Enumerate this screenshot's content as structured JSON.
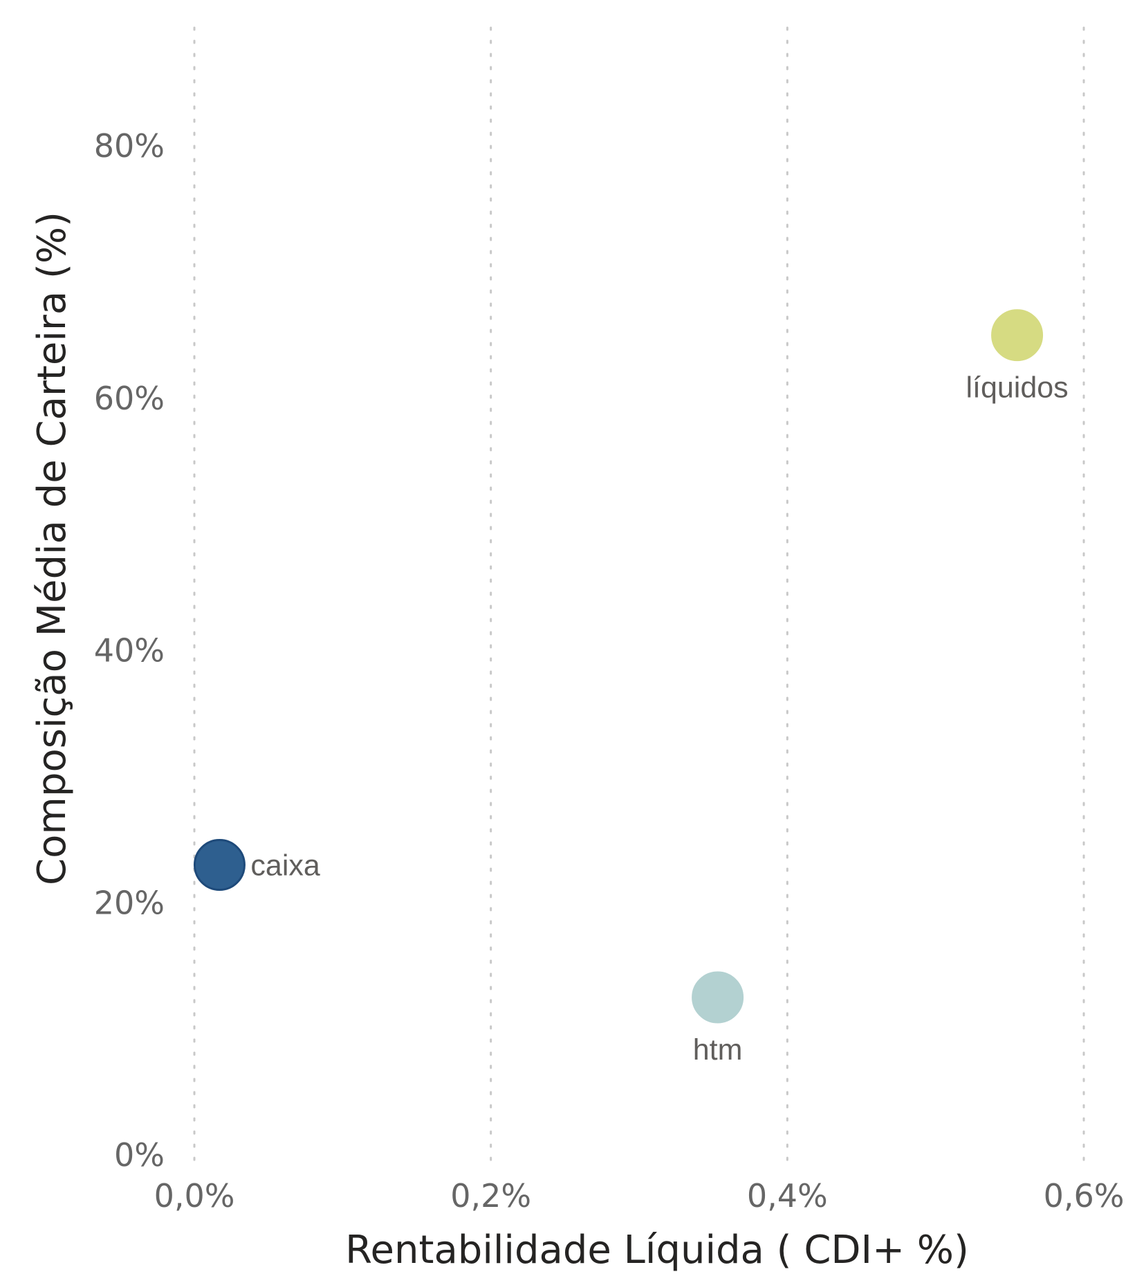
{
  "chart_data": {
    "type": "scatter",
    "title": "",
    "xlabel": "Rentabilidade Líquida ( CDI+ %)",
    "ylabel": "Composição Média de Carteira (%)",
    "xlim": [
      0.0,
      0.6
    ],
    "ylim": [
      0,
      90
    ],
    "x_ticks": [
      0.0,
      0.2,
      0.4,
      0.6
    ],
    "x_tick_labels": [
      "0,0%",
      "0,2%",
      "0,4%",
      "0,6%"
    ],
    "y_ticks": [
      0,
      20,
      40,
      60,
      80
    ],
    "y_tick_labels": [
      "0%",
      "20%",
      "40%",
      "60%",
      "80%"
    ],
    "grid": "vertical dotted",
    "points": [
      {
        "label": "caixa",
        "x": 0.017,
        "y": 23.0,
        "color": "#2e5f8f",
        "stroke": "#1e4a7a",
        "label_pos": "right"
      },
      {
        "label": "htm",
        "x": 0.353,
        "y": 12.5,
        "color": "#b3d1d1",
        "stroke": "#b3d1d1",
        "label_pos": "below"
      },
      {
        "label": "líquidos",
        "x": 0.555,
        "y": 65.0,
        "color": "#d6db82",
        "stroke": "#d6db82",
        "label_pos": "below"
      }
    ]
  }
}
